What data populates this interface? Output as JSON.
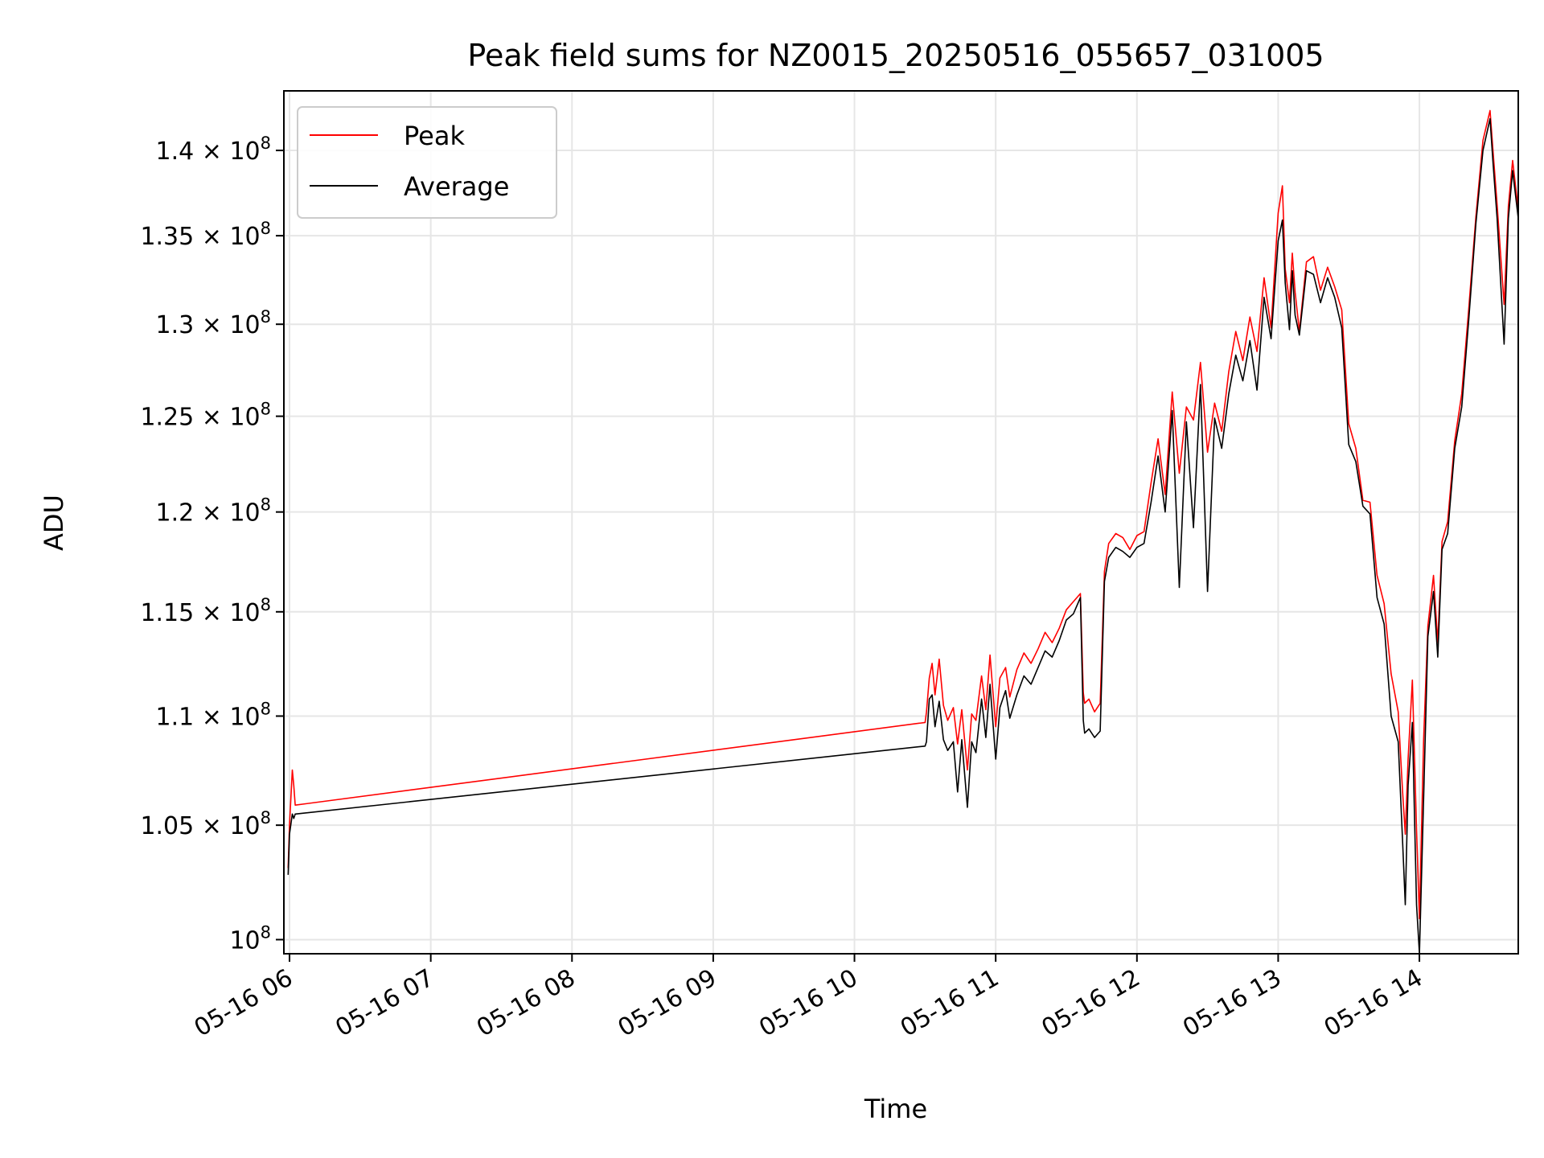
{
  "chart_data": {
    "type": "line",
    "title": "Peak field sums for NZ0015_20250516_055657_031005",
    "xlabel": "Time",
    "ylabel": "ADU",
    "x_tick_labels": [
      "05-16 06",
      "05-16 07",
      "05-16 08",
      "05-16 09",
      "05-16 10",
      "05-16 11",
      "05-16 12",
      "05-16 13",
      "05-16 14"
    ],
    "x_tick_hours": [
      6,
      7,
      8,
      9,
      10,
      11,
      12,
      13,
      14
    ],
    "xlim_hours": [
      5.96,
      14.7
    ],
    "y_scale": "log",
    "ylim": [
      99400000,
      143600000
    ],
    "y_ticks": [
      {
        "value": 100000000,
        "mantissa": "",
        "exponent": "8"
      },
      {
        "value": 105000000,
        "mantissa": "1.05",
        "exponent": "8"
      },
      {
        "value": 110000000,
        "mantissa": "1.1",
        "exponent": "8"
      },
      {
        "value": 115000000,
        "mantissa": "1.15",
        "exponent": "8"
      },
      {
        "value": 120000000,
        "mantissa": "1.2",
        "exponent": "8"
      },
      {
        "value": 125000000,
        "mantissa": "1.25",
        "exponent": "8"
      },
      {
        "value": 130000000,
        "mantissa": "1.3",
        "exponent": "8"
      },
      {
        "value": 135000000,
        "mantissa": "1.35",
        "exponent": "8"
      },
      {
        "value": 140000000,
        "mantissa": "1.4",
        "exponent": "8"
      }
    ],
    "grid": true,
    "legend_position": "top-left",
    "series": [
      {
        "name": "Peak",
        "color": "#ff0000",
        "x": [
          5.99,
          6.0,
          6.02,
          6.03,
          6.04,
          10.5,
          10.51,
          10.53,
          10.55,
          10.57,
          10.6,
          10.63,
          10.66,
          10.7,
          10.73,
          10.76,
          10.8,
          10.83,
          10.86,
          10.9,
          10.93,
          10.96,
          11.0,
          11.03,
          11.07,
          11.1,
          11.15,
          11.2,
          11.25,
          11.3,
          11.35,
          11.4,
          11.45,
          11.5,
          11.55,
          11.6,
          11.62,
          11.63,
          11.66,
          11.7,
          11.74,
          11.77,
          11.8,
          11.85,
          11.9,
          11.95,
          12.0,
          12.05,
          12.1,
          12.15,
          12.2,
          12.25,
          12.3,
          12.35,
          12.4,
          12.45,
          12.5,
          12.55,
          12.6,
          12.65,
          12.7,
          12.75,
          12.8,
          12.85,
          12.9,
          12.95,
          13.0,
          13.03,
          13.05,
          13.08,
          13.1,
          13.12,
          13.15,
          13.2,
          13.25,
          13.3,
          13.35,
          13.4,
          13.45,
          13.5,
          13.55,
          13.6,
          13.65,
          13.7,
          13.75,
          13.8,
          13.85,
          13.88,
          13.9,
          13.92,
          13.95,
          13.98,
          14.0,
          14.03,
          14.06,
          14.1,
          14.13,
          14.16,
          14.2,
          14.25,
          14.3,
          14.35,
          14.4,
          14.45,
          14.5,
          14.52,
          14.55,
          14.6,
          14.63,
          14.66,
          14.7
        ],
        "y": [
          103100000,
          105000000,
          107500000,
          106800000,
          105900000,
          109700000,
          110200000,
          111800000,
          112500000,
          111000000,
          112700000,
          110500000,
          109800000,
          110400000,
          108700000,
          110300000,
          107500000,
          110100000,
          109800000,
          111900000,
          110300000,
          112900000,
          109500000,
          111800000,
          112300000,
          110900000,
          112200000,
          113000000,
          112500000,
          113200000,
          114000000,
          113500000,
          114200000,
          115100000,
          115500000,
          115900000,
          111100000,
          110600000,
          110800000,
          110200000,
          110600000,
          117000000,
          118400000,
          118900000,
          118700000,
          118100000,
          118800000,
          119000000,
          121500000,
          123800000,
          120900000,
          126300000,
          122000000,
          125500000,
          124800000,
          127900000,
          123100000,
          125700000,
          124200000,
          127400000,
          129600000,
          128000000,
          130400000,
          128500000,
          132600000,
          129800000,
          136300000,
          137900000,
          133100000,
          131200000,
          134000000,
          131800000,
          129600000,
          133500000,
          133800000,
          131900000,
          133200000,
          132100000,
          130800000,
          124600000,
          123300000,
          120600000,
          120500000,
          116800000,
          115400000,
          112000000,
          110200000,
          106600000,
          104600000,
          108000000,
          111700000,
          104800000,
          100900000,
          108900000,
          114300000,
          116800000,
          113500000,
          118500000,
          119500000,
          123700000,
          126200000,
          130900000,
          136100000,
          140600000,
          142400000,
          140100000,
          136800000,
          131100000,
          136700000,
          139400000,
          136500000
        ]
      },
      {
        "name": "Average",
        "color": "#000000",
        "x": [
          5.99,
          6.0,
          6.02,
          6.03,
          6.04,
          10.5,
          10.51,
          10.53,
          10.55,
          10.57,
          10.6,
          10.63,
          10.66,
          10.7,
          10.73,
          10.76,
          10.8,
          10.83,
          10.86,
          10.9,
          10.93,
          10.96,
          11.0,
          11.03,
          11.07,
          11.1,
          11.15,
          11.2,
          11.25,
          11.3,
          11.35,
          11.4,
          11.45,
          11.5,
          11.55,
          11.6,
          11.62,
          11.63,
          11.66,
          11.7,
          11.74,
          11.77,
          11.8,
          11.85,
          11.9,
          11.95,
          12.0,
          12.05,
          12.1,
          12.15,
          12.2,
          12.25,
          12.3,
          12.35,
          12.4,
          12.45,
          12.5,
          12.55,
          12.6,
          12.65,
          12.7,
          12.75,
          12.8,
          12.85,
          12.9,
          12.95,
          13.0,
          13.03,
          13.05,
          13.08,
          13.1,
          13.12,
          13.15,
          13.2,
          13.25,
          13.3,
          13.35,
          13.4,
          13.45,
          13.5,
          13.55,
          13.6,
          13.65,
          13.7,
          13.75,
          13.8,
          13.85,
          13.88,
          13.9,
          13.92,
          13.95,
          13.98,
          14.0,
          14.03,
          14.06,
          14.1,
          14.13,
          14.16,
          14.2,
          14.25,
          14.3,
          14.35,
          14.4,
          14.45,
          14.5,
          14.52,
          14.55,
          14.6,
          14.63,
          14.66,
          14.7
        ],
        "y": [
          102800000,
          104600000,
          105500000,
          105300000,
          105500000,
          108600000,
          108800000,
          110800000,
          111000000,
          109500000,
          110700000,
          108900000,
          108400000,
          108800000,
          106500000,
          108900000,
          105800000,
          108800000,
          108300000,
          110800000,
          109000000,
          111500000,
          108000000,
          110400000,
          111200000,
          109900000,
          111000000,
          111900000,
          111500000,
          112300000,
          113100000,
          112800000,
          113600000,
          114600000,
          114900000,
          115700000,
          109800000,
          109200000,
          109400000,
          109000000,
          109300000,
          116500000,
          117700000,
          118200000,
          118000000,
          117700000,
          118200000,
          118400000,
          120500000,
          122900000,
          120000000,
          125300000,
          116200000,
          124700000,
          119200000,
          126700000,
          116000000,
          124900000,
          123300000,
          126200000,
          128300000,
          126900000,
          129100000,
          126400000,
          131500000,
          129200000,
          134700000,
          135900000,
          132300000,
          129700000,
          133000000,
          130500000,
          129400000,
          133000000,
          132800000,
          131200000,
          132600000,
          131500000,
          129800000,
          123500000,
          122600000,
          120300000,
          119900000,
          115700000,
          114400000,
          110000000,
          108800000,
          104400000,
          101500000,
          106800000,
          109700000,
          101500000,
          99400000,
          106200000,
          113800000,
          116000000,
          112800000,
          118100000,
          118900000,
          123300000,
          125500000,
          130300000,
          135700000,
          140000000,
          141900000,
          139400000,
          136000000,
          128900000,
          136000000,
          138800000,
          136000000
        ]
      }
    ]
  }
}
